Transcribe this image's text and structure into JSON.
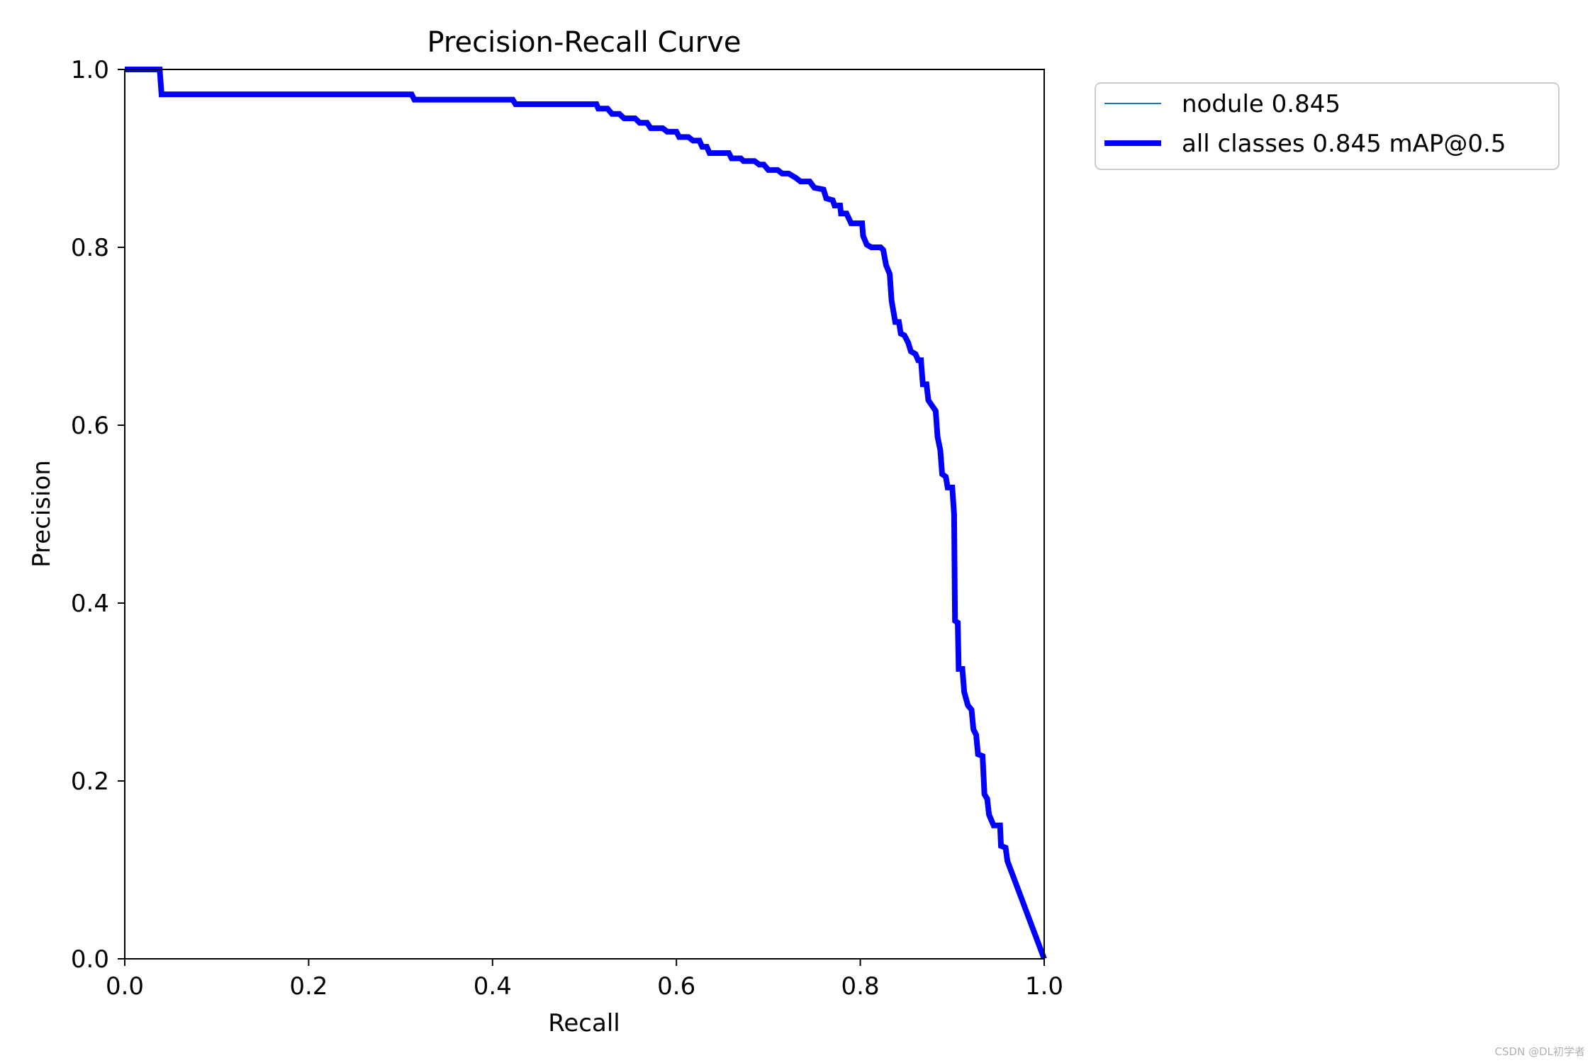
{
  "chart_data": {
    "type": "line",
    "title": "Precision-Recall Curve",
    "xlabel": "Recall",
    "ylabel": "Precision",
    "xlim": [
      0,
      1
    ],
    "ylim": [
      0,
      1
    ],
    "x_ticks": [
      "0.0",
      "0.2",
      "0.4",
      "0.6",
      "0.8",
      "1.0"
    ],
    "y_ticks": [
      "0.0",
      "0.2",
      "0.4",
      "0.6",
      "0.8",
      "1.0"
    ],
    "grid": false,
    "legend_position": "outside-top-right",
    "series": [
      {
        "name": "nodule 0.845",
        "color": "#1f77b4",
        "style": "thin",
        "points": [
          [
            0.0,
            1.0
          ],
          [
            0.038,
            1.0
          ],
          [
            0.04,
            0.972
          ],
          [
            0.1,
            0.972
          ],
          [
            0.2,
            0.972
          ],
          [
            0.312,
            0.972
          ],
          [
            0.315,
            0.966
          ],
          [
            0.4,
            0.966
          ],
          [
            0.422,
            0.966
          ],
          [
            0.425,
            0.961
          ],
          [
            0.5,
            0.961
          ],
          [
            0.513,
            0.961
          ],
          [
            0.515,
            0.956
          ],
          [
            0.525,
            0.956
          ],
          [
            0.53,
            0.95
          ],
          [
            0.538,
            0.95
          ],
          [
            0.543,
            0.945
          ],
          [
            0.555,
            0.945
          ],
          [
            0.56,
            0.94
          ],
          [
            0.568,
            0.94
          ],
          [
            0.572,
            0.934
          ],
          [
            0.585,
            0.934
          ],
          [
            0.59,
            0.93
          ],
          [
            0.6,
            0.93
          ],
          [
            0.603,
            0.924
          ],
          [
            0.613,
            0.924
          ],
          [
            0.618,
            0.92
          ],
          [
            0.625,
            0.92
          ],
          [
            0.628,
            0.913
          ],
          [
            0.633,
            0.913
          ],
          [
            0.636,
            0.906
          ],
          [
            0.657,
            0.906
          ],
          [
            0.66,
            0.9
          ],
          [
            0.67,
            0.9
          ],
          [
            0.673,
            0.897
          ],
          [
            0.685,
            0.897
          ],
          [
            0.69,
            0.893
          ],
          [
            0.695,
            0.893
          ],
          [
            0.7,
            0.887
          ],
          [
            0.71,
            0.887
          ],
          [
            0.715,
            0.883
          ],
          [
            0.722,
            0.883
          ],
          [
            0.73,
            0.878
          ],
          [
            0.735,
            0.874
          ],
          [
            0.745,
            0.874
          ],
          [
            0.75,
            0.867
          ],
          [
            0.76,
            0.865
          ],
          [
            0.763,
            0.855
          ],
          [
            0.77,
            0.853
          ],
          [
            0.772,
            0.847
          ],
          [
            0.778,
            0.847
          ],
          [
            0.779,
            0.838
          ],
          [
            0.785,
            0.838
          ],
          [
            0.79,
            0.827
          ],
          [
            0.802,
            0.827
          ],
          [
            0.803,
            0.813
          ],
          [
            0.807,
            0.803
          ],
          [
            0.812,
            0.8
          ],
          [
            0.822,
            0.8
          ],
          [
            0.825,
            0.797
          ],
          [
            0.828,
            0.78
          ],
          [
            0.832,
            0.77
          ],
          [
            0.834,
            0.74
          ],
          [
            0.836,
            0.728
          ],
          [
            0.838,
            0.716
          ],
          [
            0.842,
            0.716
          ],
          [
            0.844,
            0.703
          ],
          [
            0.848,
            0.701
          ],
          [
            0.852,
            0.693
          ],
          [
            0.855,
            0.683
          ],
          [
            0.86,
            0.68
          ],
          [
            0.863,
            0.673
          ],
          [
            0.866,
            0.673
          ],
          [
            0.868,
            0.646
          ],
          [
            0.872,
            0.646
          ],
          [
            0.874,
            0.628
          ],
          [
            0.878,
            0.622
          ],
          [
            0.882,
            0.616
          ],
          [
            0.884,
            0.587
          ],
          [
            0.887,
            0.572
          ],
          [
            0.889,
            0.545
          ],
          [
            0.893,
            0.542
          ],
          [
            0.895,
            0.53
          ],
          [
            0.9,
            0.53
          ],
          [
            0.902,
            0.5
          ],
          [
            0.903,
            0.38
          ],
          [
            0.906,
            0.378
          ],
          [
            0.907,
            0.326
          ],
          [
            0.911,
            0.326
          ],
          [
            0.913,
            0.3
          ],
          [
            0.917,
            0.285
          ],
          [
            0.921,
            0.28
          ],
          [
            0.923,
            0.258
          ],
          [
            0.926,
            0.252
          ],
          [
            0.928,
            0.23
          ],
          [
            0.933,
            0.228
          ],
          [
            0.935,
            0.185
          ],
          [
            0.938,
            0.18
          ],
          [
            0.94,
            0.162
          ],
          [
            0.945,
            0.15
          ],
          [
            0.952,
            0.15
          ],
          [
            0.953,
            0.127
          ],
          [
            0.958,
            0.125
          ],
          [
            0.96,
            0.11
          ],
          [
            1.0,
            0.0
          ]
        ]
      },
      {
        "name": "all classes 0.845 mAP@0.5",
        "color": "#0000ff",
        "style": "thick",
        "points": [
          [
            0.0,
            1.0
          ],
          [
            0.038,
            1.0
          ],
          [
            0.04,
            0.972
          ],
          [
            0.1,
            0.972
          ],
          [
            0.2,
            0.972
          ],
          [
            0.312,
            0.972
          ],
          [
            0.315,
            0.966
          ],
          [
            0.4,
            0.966
          ],
          [
            0.422,
            0.966
          ],
          [
            0.425,
            0.961
          ],
          [
            0.5,
            0.961
          ],
          [
            0.513,
            0.961
          ],
          [
            0.515,
            0.956
          ],
          [
            0.525,
            0.956
          ],
          [
            0.53,
            0.95
          ],
          [
            0.538,
            0.95
          ],
          [
            0.543,
            0.945
          ],
          [
            0.555,
            0.945
          ],
          [
            0.56,
            0.94
          ],
          [
            0.568,
            0.94
          ],
          [
            0.572,
            0.934
          ],
          [
            0.585,
            0.934
          ],
          [
            0.59,
            0.93
          ],
          [
            0.6,
            0.93
          ],
          [
            0.603,
            0.924
          ],
          [
            0.613,
            0.924
          ],
          [
            0.618,
            0.92
          ],
          [
            0.625,
            0.92
          ],
          [
            0.628,
            0.913
          ],
          [
            0.633,
            0.913
          ],
          [
            0.636,
            0.906
          ],
          [
            0.657,
            0.906
          ],
          [
            0.66,
            0.9
          ],
          [
            0.67,
            0.9
          ],
          [
            0.673,
            0.897
          ],
          [
            0.685,
            0.897
          ],
          [
            0.69,
            0.893
          ],
          [
            0.695,
            0.893
          ],
          [
            0.7,
            0.887
          ],
          [
            0.71,
            0.887
          ],
          [
            0.715,
            0.883
          ],
          [
            0.722,
            0.883
          ],
          [
            0.73,
            0.878
          ],
          [
            0.735,
            0.874
          ],
          [
            0.745,
            0.874
          ],
          [
            0.75,
            0.867
          ],
          [
            0.76,
            0.865
          ],
          [
            0.763,
            0.855
          ],
          [
            0.77,
            0.853
          ],
          [
            0.772,
            0.847
          ],
          [
            0.778,
            0.847
          ],
          [
            0.779,
            0.838
          ],
          [
            0.785,
            0.838
          ],
          [
            0.79,
            0.827
          ],
          [
            0.802,
            0.827
          ],
          [
            0.803,
            0.813
          ],
          [
            0.807,
            0.803
          ],
          [
            0.812,
            0.8
          ],
          [
            0.822,
            0.8
          ],
          [
            0.825,
            0.797
          ],
          [
            0.828,
            0.78
          ],
          [
            0.832,
            0.77
          ],
          [
            0.834,
            0.74
          ],
          [
            0.836,
            0.728
          ],
          [
            0.838,
            0.716
          ],
          [
            0.842,
            0.716
          ],
          [
            0.844,
            0.703
          ],
          [
            0.848,
            0.701
          ],
          [
            0.852,
            0.693
          ],
          [
            0.855,
            0.683
          ],
          [
            0.86,
            0.68
          ],
          [
            0.863,
            0.673
          ],
          [
            0.866,
            0.673
          ],
          [
            0.868,
            0.646
          ],
          [
            0.872,
            0.646
          ],
          [
            0.874,
            0.628
          ],
          [
            0.878,
            0.622
          ],
          [
            0.882,
            0.616
          ],
          [
            0.884,
            0.587
          ],
          [
            0.887,
            0.572
          ],
          [
            0.889,
            0.545
          ],
          [
            0.893,
            0.542
          ],
          [
            0.895,
            0.53
          ],
          [
            0.9,
            0.53
          ],
          [
            0.902,
            0.5
          ],
          [
            0.903,
            0.38
          ],
          [
            0.906,
            0.378
          ],
          [
            0.907,
            0.326
          ],
          [
            0.911,
            0.326
          ],
          [
            0.913,
            0.3
          ],
          [
            0.917,
            0.285
          ],
          [
            0.921,
            0.28
          ],
          [
            0.923,
            0.258
          ],
          [
            0.926,
            0.252
          ],
          [
            0.928,
            0.23
          ],
          [
            0.933,
            0.228
          ],
          [
            0.935,
            0.185
          ],
          [
            0.938,
            0.18
          ],
          [
            0.94,
            0.162
          ],
          [
            0.945,
            0.15
          ],
          [
            0.952,
            0.15
          ],
          [
            0.953,
            0.127
          ],
          [
            0.958,
            0.125
          ],
          [
            0.96,
            0.11
          ],
          [
            1.0,
            0.0
          ]
        ]
      }
    ]
  },
  "watermark": "CSDN @DL初学者"
}
